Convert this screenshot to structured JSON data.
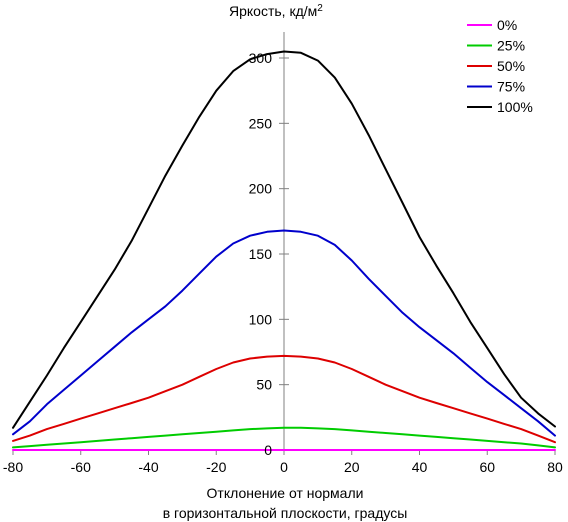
{
  "chart_data": {
    "type": "line",
    "title": "",
    "ylabel": "Яркость, кд/м",
    "ylabel_superscript": "2",
    "xlabel_line1": "Отклонение от нормали",
    "xlabel_line2": "в горизонтальной плоскости, градусы",
    "xlim": [
      -80,
      80
    ],
    "ylim": [
      0,
      310
    ],
    "x_ticks": [
      -80,
      -60,
      -40,
      -20,
      0,
      20,
      40,
      60,
      80
    ],
    "y_ticks": [
      0,
      50,
      100,
      150,
      200,
      250,
      300
    ],
    "grid": false,
    "legend_position": "top-right",
    "x": [
      -80,
      -75,
      -70,
      -65,
      -60,
      -55,
      -50,
      -45,
      -40,
      -35,
      -30,
      -25,
      -20,
      -15,
      -10,
      -5,
      0,
      5,
      10,
      15,
      20,
      25,
      30,
      35,
      40,
      45,
      50,
      55,
      60,
      65,
      70,
      75,
      80
    ],
    "series": [
      {
        "name": "0%",
        "color": "#ff00ff",
        "values": [
          0,
          0,
          0,
          0,
          0,
          0,
          0,
          0,
          0,
          0,
          0,
          0,
          0,
          0,
          0,
          0,
          0,
          0,
          0,
          0,
          0,
          0,
          0,
          0,
          0,
          0,
          0,
          0,
          0,
          0,
          0,
          0,
          0
        ]
      },
      {
        "name": "25%",
        "color": "#00cc00",
        "values": [
          2,
          3,
          4,
          5,
          6,
          7,
          8,
          9,
          10,
          11,
          12,
          13,
          14,
          15,
          16,
          16.5,
          17,
          17,
          16.5,
          16,
          15,
          14,
          13,
          12,
          11,
          10,
          9,
          8,
          7,
          6,
          5,
          3.5,
          2
        ]
      },
      {
        "name": "50%",
        "color": "#dd0000",
        "values": [
          7,
          11,
          16,
          20,
          24,
          28,
          32,
          36,
          40,
          45,
          50,
          56,
          62,
          67,
          70,
          71.5,
          72,
          71.5,
          70,
          67,
          62,
          56,
          50,
          45,
          40,
          36,
          32,
          28,
          24,
          20,
          16,
          11,
          6
        ]
      },
      {
        "name": "75%",
        "color": "#0000cc",
        "values": [
          12,
          22,
          35,
          46,
          57,
          68,
          79,
          90,
          100,
          110,
          122,
          135,
          148,
          158,
          164,
          167,
          168,
          167,
          164,
          157,
          145,
          131,
          118,
          105,
          94,
          84,
          74,
          63,
          52,
          42,
          32,
          22,
          11
        ]
      },
      {
        "name": "100%",
        "color": "#000000",
        "values": [
          17,
          37,
          57,
          78,
          98,
          118,
          138,
          160,
          185,
          210,
          233,
          255,
          275,
          290,
          299,
          303,
          305,
          304,
          298,
          285,
          265,
          241,
          215,
          189,
          163,
          141,
          120,
          98,
          78,
          58,
          40,
          28,
          18
        ]
      }
    ]
  }
}
